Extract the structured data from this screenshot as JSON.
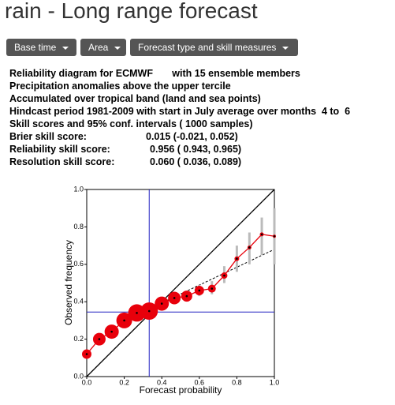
{
  "page": {
    "title": "rain - Long range forecast",
    "buttons": [
      "Base time",
      "Area",
      "Forecast type and skill measures"
    ],
    "info_lines": [
      "Reliability diagram for ECMWF       with 15 ensemble members",
      "Precipitation anomalies above the upper tercile",
      "Accumulated over tropical band (land and sea points)",
      "Hindcast period 1981-2009 with start in July average over months  4 to  6",
      "Skill scores and 95% conf. intervals ( 1000 samples)"
    ],
    "scores": [
      {
        "label": "Brier skill score:",
        "value": "0.015 (-0.021, 0.052)"
      },
      {
        "label": "Reliability skill score:",
        "value": "0.956 ( 0.943, 0.965)"
      },
      {
        "label": "Resolution skill score:",
        "value": "0.060 ( 0.036, 0.089)"
      }
    ]
  },
  "chart_data": {
    "type": "line",
    "x_label": "Forecast probability",
    "y_label": "Observed frequency",
    "x": [
      0.0,
      0.067,
      0.133,
      0.2,
      0.267,
      0.333,
      0.4,
      0.467,
      0.533,
      0.6,
      0.667,
      0.733,
      0.8,
      0.867,
      0.933,
      1.0
    ],
    "series": [
      {
        "name": "Observed frequency",
        "color": "#e8000b",
        "values": [
          0.12,
          0.2,
          0.24,
          0.3,
          0.34,
          0.35,
          0.39,
          0.42,
          0.43,
          0.46,
          0.47,
          0.54,
          0.63,
          0.69,
          0.76,
          0.75
        ],
        "sizes": [
          6,
          8,
          9,
          10,
          11,
          11,
          9,
          8,
          7,
          6,
          5,
          4,
          3,
          2.5,
          2.5,
          2
        ],
        "ci_low": [
          null,
          null,
          null,
          null,
          null,
          null,
          null,
          null,
          null,
          0.43,
          0.44,
          0.5,
          0.56,
          0.6,
          0.65,
          0.6
        ],
        "ci_high": [
          null,
          null,
          null,
          null,
          null,
          null,
          null,
          null,
          null,
          0.49,
          0.51,
          0.59,
          0.7,
          0.77,
          0.85,
          0.9
        ]
      }
    ],
    "climatology_x": 0.333,
    "climatology_y": 0.345,
    "regression_line": {
      "x": [
        0.33,
        1.0
      ],
      "y": [
        0.36,
        0.68
      ]
    },
    "xlim": [
      0.0,
      1.0
    ],
    "ylim": [
      0.0,
      1.0
    ],
    "xticks": [
      {
        "value": 0,
        "label": "0.0"
      },
      {
        "value": 0.2,
        "label": "0.2"
      },
      {
        "value": 0.4,
        "label": "0.4"
      },
      {
        "value": 0.6,
        "label": "0.6"
      },
      {
        "value": 0.8,
        "label": "0.8"
      },
      {
        "value": 1,
        "label": "1.0"
      }
    ],
    "yticks": [
      {
        "value": 0,
        "label": "0.0"
      },
      {
        "value": 0.2,
        "label": "0.2"
      },
      {
        "value": 0.4,
        "label": "0.4"
      },
      {
        "value": 0.6,
        "label": "0.6"
      },
      {
        "value": 0.8,
        "label": "0.8"
      },
      {
        "value": 1,
        "label": "1.0"
      }
    ]
  }
}
